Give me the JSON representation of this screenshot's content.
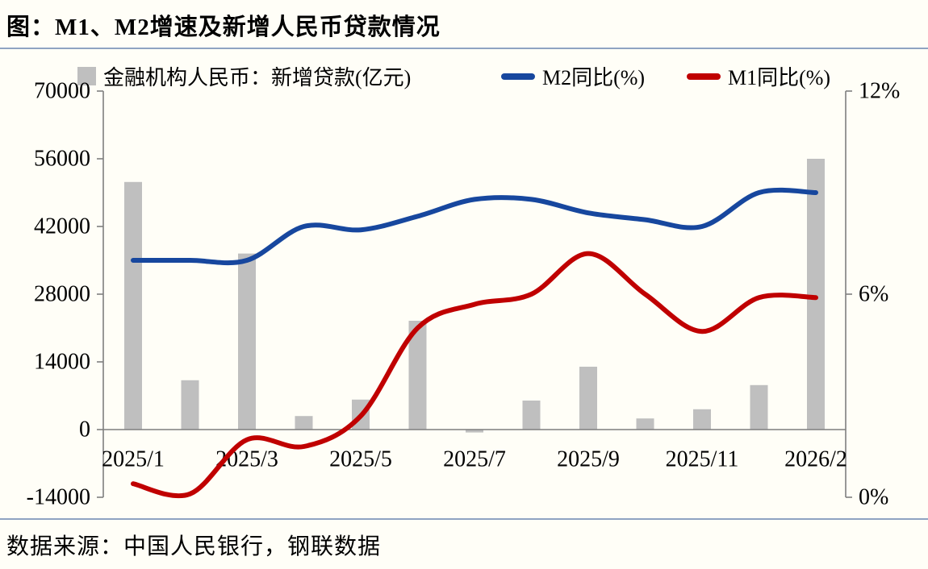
{
  "title": "图：M1、M2增速及新增人民币贷款情况",
  "source": "数据来源：中国人民银行，钢联数据",
  "legend": [
    {
      "label": "金融机构人民币：新增贷款(亿元)",
      "type": "bar",
      "color": "#bfbfbf"
    },
    {
      "label": "M2同比(%)",
      "type": "line",
      "color": "#17479e"
    },
    {
      "label": "M1同比(%)",
      "type": "line",
      "color": "#c00000"
    }
  ],
  "colors": {
    "bar": "#bfbfbf",
    "m2_line": "#17479e",
    "m1_line": "#c00000",
    "axis": "#7f7f7f",
    "divider_rule": "#8fa3c2",
    "background": "#fffef7",
    "text": "#000000"
  },
  "chart_data": {
    "type": "combo (bar + line, dual axis)",
    "n_points": 13,
    "x_ticks": [
      {
        "index": 0,
        "label": "2025/1"
      },
      {
        "index": 2,
        "label": "2025/3"
      },
      {
        "index": 4,
        "label": "2025/5"
      },
      {
        "index": 6,
        "label": "2025/7"
      },
      {
        "index": 8,
        "label": "2025/9"
      },
      {
        "index": 10,
        "label": "2025/11"
      },
      {
        "index": 12,
        "label": "2026/2"
      }
    ],
    "series": [
      {
        "name": "金融机构人民币：新增贷款(亿元)",
        "type": "bar",
        "axis": "left",
        "color": "#bfbfbf",
        "values": [
          51200,
          10200,
          36400,
          2800,
          6200,
          22500,
          -600,
          6000,
          13000,
          2300,
          4200,
          9200,
          56000
        ]
      },
      {
        "name": "M2同比(%)",
        "type": "line",
        "axis": "right",
        "color": "#17479e",
        "values": [
          7.0,
          7.0,
          7.0,
          8.0,
          7.9,
          8.3,
          8.8,
          8.8,
          8.4,
          8.2,
          8.0,
          9.0,
          9.0
        ]
      },
      {
        "name": "M1同比(%)",
        "type": "line",
        "axis": "right",
        "color": "#c00000",
        "values": [
          0.4,
          0.1,
          1.7,
          1.5,
          2.4,
          5.0,
          5.7,
          6.0,
          7.2,
          6.0,
          4.9,
          5.9,
          5.9
        ]
      }
    ],
    "left_axis": {
      "min": -14000,
      "max": 70000,
      "step": 14000,
      "ticks": [
        {
          "v": 70000,
          "label": "70000"
        },
        {
          "v": 56000,
          "label": "56000"
        },
        {
          "v": 42000,
          "label": "42000"
        },
        {
          "v": 28000,
          "label": "28000"
        },
        {
          "v": 14000,
          "label": "14000"
        },
        {
          "v": 0,
          "label": "0"
        },
        {
          "v": -14000,
          "label": "-14000"
        }
      ]
    },
    "right_axis": {
      "min": 0,
      "max": 12,
      "step": 6,
      "ticks": [
        {
          "v": 12,
          "label": "12%"
        },
        {
          "v": 6,
          "label": "6%"
        },
        {
          "v": 0,
          "label": "0%"
        }
      ]
    },
    "grid": false,
    "legend_position": "top"
  }
}
